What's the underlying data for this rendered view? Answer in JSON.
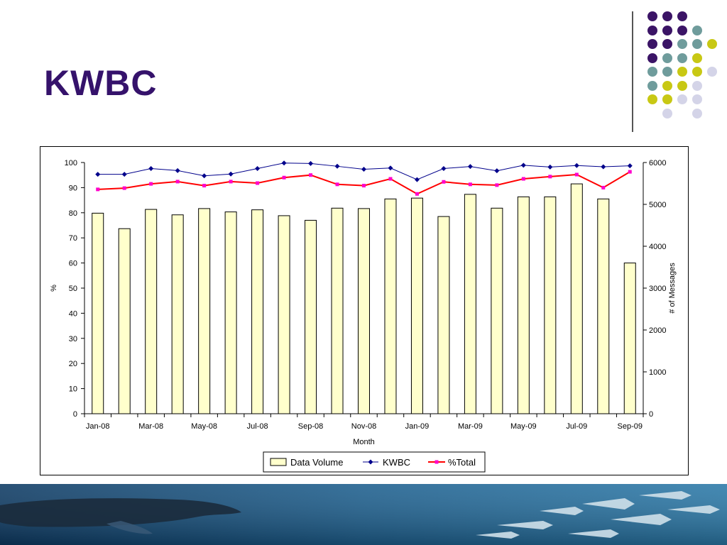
{
  "slide": {
    "title": "KWBC"
  },
  "decoration": {
    "colors": {
      "purple": "#3b1466",
      "teal": "#6f9c9c",
      "yellow": "#c8c814",
      "lavender": "#d4d4e8"
    },
    "dot_grid": [
      [
        "purple",
        "purple",
        "purple",
        ""
      ],
      [
        "purple",
        "purple",
        "purple",
        "teal"
      ],
      [
        "purple",
        "purple",
        "teal",
        "teal",
        "yellow"
      ],
      [
        "purple",
        "teal",
        "teal",
        "yellow"
      ],
      [
        "teal",
        "teal",
        "yellow",
        "yellow",
        "lavender"
      ],
      [
        "teal",
        "yellow",
        "yellow",
        "lavender"
      ],
      [
        "yellow",
        "yellow",
        "lavender",
        "lavender"
      ],
      [
        "",
        "lavender",
        "",
        "lavender"
      ]
    ],
    "banner_icons": [
      "whale-icon",
      "fish-school-icon"
    ]
  },
  "chart_data": {
    "type": "bar",
    "months": [
      "Jan-08",
      "Feb-08",
      "Mar-08",
      "Apr-08",
      "May-08",
      "Jun-08",
      "Jul-08",
      "Aug-08",
      "Sep-08",
      "Oct-08",
      "Nov-08",
      "Dec-08",
      "Jan-09",
      "Feb-09",
      "Mar-09",
      "Apr-09",
      "May-09",
      "Jun-09",
      "Jul-09",
      "Aug-09",
      "Sep-09"
    ],
    "x_tick_labels": [
      "Jan-08",
      "",
      "Mar-08",
      "",
      "May-08",
      "",
      "Jul-08",
      "",
      "Sep-08",
      "",
      "Nov-08",
      "",
      "Jan-09",
      "",
      "Mar-09",
      "",
      "May-09",
      "",
      "Jul-09",
      "",
      "Sep-09"
    ],
    "xlabel": "Month",
    "ylabel_left": "%",
    "ylabel_right": "# of Messages",
    "ylim_left": [
      0,
      100
    ],
    "ylim_right": [
      0,
      6000
    ],
    "yticks_left": [
      "0",
      "10",
      "20",
      "30",
      "40",
      "50",
      "60",
      "70",
      "80",
      "90",
      "100"
    ],
    "yticks_right": [
      "0",
      "1000",
      "2000",
      "3000",
      "4000",
      "5000",
      "6000"
    ],
    "series": [
      {
        "name": "Data Volume",
        "kind": "bar",
        "axis": "right",
        "color": "#ffffcc",
        "stroke": "#000000",
        "values": [
          4790,
          4420,
          4880,
          4750,
          4900,
          4820,
          4870,
          4730,
          4620,
          4910,
          4900,
          5130,
          5150,
          4710,
          5240,
          4910,
          5180,
          5180,
          5490,
          5130,
          3600
        ]
      },
      {
        "name": "KWBC",
        "kind": "line",
        "axis": "left",
        "color": "#00008b",
        "marker": "diamond",
        "values": [
          95.3,
          95.3,
          97.6,
          96.8,
          94.7,
          95.4,
          97.6,
          99.8,
          99.6,
          98.5,
          97.3,
          97.8,
          93.2,
          97.6,
          98.4,
          96.7,
          98.9,
          98.2,
          98.8,
          98.3,
          98.7
        ]
      },
      {
        "name": "%Total",
        "kind": "line",
        "axis": "left",
        "color": "#ff0000",
        "marker": "square",
        "marker_color": "#ff00cc",
        "values": [
          89.3,
          89.8,
          91.5,
          92.4,
          90.8,
          92.4,
          91.8,
          94.0,
          95.0,
          91.3,
          90.8,
          93.5,
          87.5,
          92.3,
          91.3,
          91.0,
          93.5,
          94.4,
          95.2,
          90.0,
          96.3
        ]
      }
    ],
    "legend_position": "bottom",
    "grid": false
  }
}
